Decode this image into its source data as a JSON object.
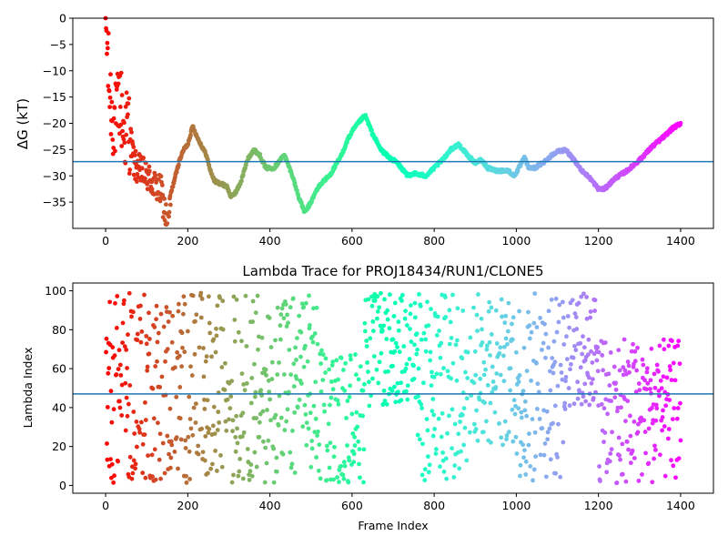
{
  "chart_data": [
    {
      "type": "scatter",
      "title": "",
      "xlabel": "",
      "ylabel": "ΔG (kT)",
      "xlim": [
        -80,
        1480
      ],
      "ylim": [
        -40,
        0
      ],
      "xticks": [
        "0",
        "200",
        "400",
        "600",
        "800",
        "1000",
        "1200",
        "1400"
      ],
      "yticks": [
        "0",
        "−5",
        "−10",
        "−15",
        "−20",
        "−25",
        "−30",
        "−35"
      ],
      "hline": -27.3,
      "colormap": "rainbow (red at frame 0 → violet at frame 1400)",
      "hline_color": "#1f77b4",
      "x_range": [
        0,
        1400
      ],
      "keypoints": [
        [
          0,
          -0.5
        ],
        [
          8,
          -12
        ],
        [
          15,
          -18
        ],
        [
          25,
          -20
        ],
        [
          35,
          -15
        ],
        [
          45,
          -22
        ],
        [
          55,
          -20
        ],
        [
          70,
          -28
        ],
        [
          85,
          -29
        ],
        [
          100,
          -30
        ],
        [
          120,
          -32
        ],
        [
          135,
          -33
        ],
        [
          145,
          -37
        ],
        [
          152,
          -40
        ],
        [
          160,
          -33
        ],
        [
          170,
          -30
        ],
        [
          180,
          -27
        ],
        [
          190,
          -25
        ],
        [
          200,
          -24
        ],
        [
          212,
          -20.5
        ],
        [
          222,
          -22.5
        ],
        [
          235,
          -24.5
        ],
        [
          245,
          -26
        ],
        [
          255,
          -29
        ],
        [
          265,
          -31
        ],
        [
          280,
          -31.5
        ],
        [
          295,
          -32
        ],
        [
          305,
          -34
        ],
        [
          318,
          -33
        ],
        [
          330,
          -31
        ],
        [
          345,
          -27
        ],
        [
          360,
          -25
        ],
        [
          375,
          -26
        ],
        [
          390,
          -28.5
        ],
        [
          410,
          -28.5
        ],
        [
          425,
          -27
        ],
        [
          435,
          -26
        ],
        [
          445,
          -28
        ],
        [
          455,
          -30
        ],
        [
          470,
          -34
        ],
        [
          485,
          -37
        ],
        [
          500,
          -35
        ],
        [
          515,
          -32.5
        ],
        [
          530,
          -31
        ],
        [
          545,
          -30
        ],
        [
          560,
          -28
        ],
        [
          575,
          -26
        ],
        [
          590,
          -23
        ],
        [
          605,
          -21
        ],
        [
          620,
          -19.5
        ],
        [
          632,
          -18.5
        ],
        [
          650,
          -22
        ],
        [
          670,
          -25
        ],
        [
          690,
          -26.5
        ],
        [
          710,
          -27.5
        ],
        [
          725,
          -29
        ],
        [
          735,
          -30
        ],
        [
          750,
          -29.5
        ],
        [
          765,
          -29.8
        ],
        [
          780,
          -30
        ],
        [
          800,
          -28.5
        ],
        [
          820,
          -27
        ],
        [
          840,
          -25
        ],
        [
          860,
          -24
        ],
        [
          880,
          -26
        ],
        [
          900,
          -27.5
        ],
        [
          915,
          -27
        ],
        [
          930,
          -28.5
        ],
        [
          950,
          -29
        ],
        [
          980,
          -29
        ],
        [
          995,
          -30
        ],
        [
          1010,
          -28
        ],
        [
          1020,
          -26.5
        ],
        [
          1030,
          -28.5
        ],
        [
          1045,
          -28.5
        ],
        [
          1065,
          -27.5
        ],
        [
          1080,
          -26.5
        ],
        [
          1095,
          -25.5
        ],
        [
          1120,
          -25
        ],
        [
          1140,
          -27
        ],
        [
          1160,
          -29
        ],
        [
          1180,
          -30.5
        ],
        [
          1200,
          -32.5
        ],
        [
          1215,
          -32.5
        ],
        [
          1240,
          -30.5
        ],
        [
          1270,
          -29
        ],
        [
          1300,
          -27
        ],
        [
          1330,
          -24.5
        ],
        [
          1360,
          -22.5
        ],
        [
          1380,
          -21
        ],
        [
          1400,
          -20
        ]
      ]
    },
    {
      "type": "scatter",
      "title": "Lambda Trace for PROJ18434/RUN1/CLONE5",
      "xlabel": "Frame Index",
      "ylabel": "Lambda Index",
      "xlim": [
        -80,
        1480
      ],
      "ylim": [
        -4,
        104
      ],
      "xticks": [
        "0",
        "200",
        "400",
        "600",
        "800",
        "1000",
        "1200",
        "1400"
      ],
      "yticks": [
        "0",
        "20",
        "40",
        "60",
        "80",
        "100"
      ],
      "hline": 47,
      "colormap": "rainbow (red at frame 0 → violet at frame 1400)",
      "hline_color": "#1f77b4",
      "x_range": [
        0,
        1400
      ],
      "value_range": [
        1,
        99
      ]
    }
  ]
}
